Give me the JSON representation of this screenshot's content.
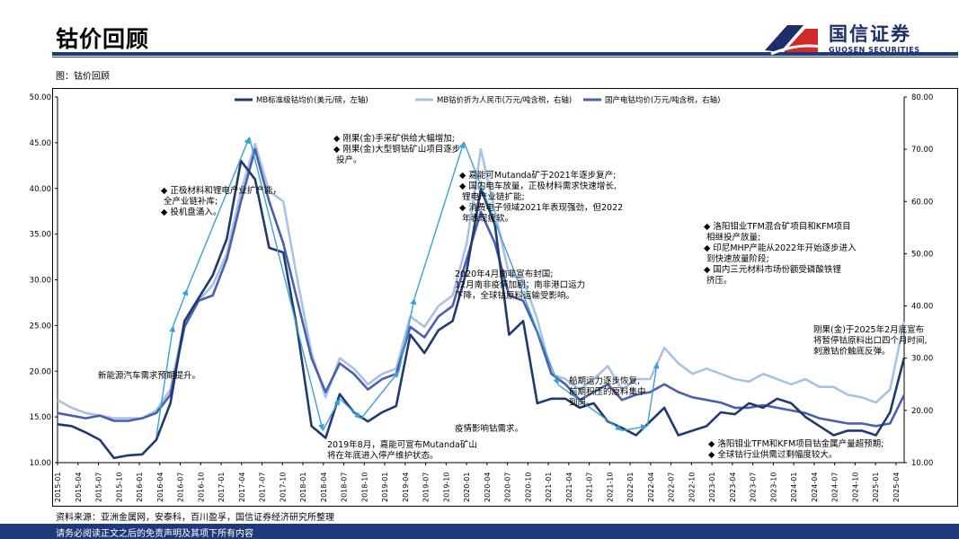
{
  "header": {
    "title": "钴价回顾"
  },
  "logo": {
    "name_cn": "国信证券",
    "name_en": "GUOSEN SECURITIES"
  },
  "figure": {
    "caption": "图：钴价回顾"
  },
  "source": "资料来源：亚洲金属网，安泰科，百川盈孚，国信证券经济研究所整理",
  "footer": "请务必阅读正文之后的免责声明及其项下所有内容",
  "colors": {
    "mb": "#1f3a6e",
    "rmb": "#a9c2e3",
    "domestic": "#4a5fae",
    "arrow": "#3aa0d8",
    "brand": "#1f3a7a"
  },
  "chart_data": {
    "type": "line",
    "title": "钴价回顾",
    "x_ticks": [
      "2015-01",
      "2015-04",
      "2015-07",
      "2015-10",
      "2016-01",
      "2016-04",
      "2016-07",
      "2016-10",
      "2017-01",
      "2017-04",
      "2017-07",
      "2017-10",
      "2018-01",
      "2018-04",
      "2018-07",
      "2018-10",
      "2019-01",
      "2019-04",
      "2019-07",
      "2019-10",
      "2020-01",
      "2020-04",
      "2020-07",
      "2020-10",
      "2021-01",
      "2021-04",
      "2021-07",
      "2021-10",
      "2022-01",
      "2022-04",
      "2022-07",
      "2022-10",
      "2023-01",
      "2023-04",
      "2023-07",
      "2023-10",
      "2024-01",
      "2024-04",
      "2024-07",
      "2024-10",
      "2025-01",
      "2025-04"
    ],
    "y_left": {
      "min": 10,
      "max": 50,
      "step": 5,
      "tick_labels": [
        "10.00",
        "15.00",
        "20.00",
        "25.00",
        "30.00",
        "35.00",
        "40.00",
        "45.00",
        "50.00"
      ]
    },
    "y_right": {
      "min": 10,
      "max": 80,
      "step": 10,
      "tick_labels": [
        "10.00",
        "20.00",
        "30.00",
        "40.00",
        "50.00",
        "60.00",
        "70.00",
        "80.00"
      ]
    },
    "series": [
      {
        "name": "MB标准级钴均价(美元/磅，左轴)",
        "axis": "left",
        "points": [
          [
            0,
            14.2
          ],
          [
            1,
            14.0
          ],
          [
            2,
            13.3
          ],
          [
            3,
            12.5
          ],
          [
            4,
            10.5
          ],
          [
            5,
            10.8
          ],
          [
            6,
            10.9
          ],
          [
            7,
            12.5
          ],
          [
            8,
            16.5
          ],
          [
            9,
            25.5
          ],
          [
            10,
            28.0
          ],
          [
            11,
            30.5
          ],
          [
            12,
            34.5
          ],
          [
            13,
            43.0
          ],
          [
            14,
            41.0
          ],
          [
            15,
            33.5
          ],
          [
            16,
            33.0
          ],
          [
            17,
            24.5
          ],
          [
            18,
            14.0
          ],
          [
            19,
            12.7
          ],
          [
            20,
            17.5
          ],
          [
            21,
            15.5
          ],
          [
            22,
            14.5
          ],
          [
            23,
            15.5
          ],
          [
            24,
            16.2
          ],
          [
            25,
            24.0
          ],
          [
            26,
            22.0
          ],
          [
            27,
            24.5
          ],
          [
            28,
            25.5
          ],
          [
            29,
            31.0
          ],
          [
            30,
            40.0
          ],
          [
            31,
            36.0
          ],
          [
            32,
            24.0
          ],
          [
            33,
            25.5
          ],
          [
            34,
            16.5
          ],
          [
            35,
            17.0
          ],
          [
            36,
            17.0
          ],
          [
            37,
            16.0
          ],
          [
            38,
            16.5
          ],
          [
            39,
            14.5
          ],
          [
            40,
            13.8
          ],
          [
            41,
            13.0
          ],
          [
            42,
            14.5
          ],
          [
            43,
            16.0
          ],
          [
            44,
            13.0
          ],
          [
            45,
            13.5
          ],
          [
            46,
            14.0
          ],
          [
            47,
            15.5
          ],
          [
            48,
            15.3
          ],
          [
            49,
            16.5
          ],
          [
            50,
            16.0
          ],
          [
            51,
            17.0
          ],
          [
            52,
            16.5
          ],
          [
            53,
            15.0
          ],
          [
            54,
            14.0
          ],
          [
            55,
            13.0
          ],
          [
            56,
            13.5
          ],
          [
            57,
            13.5
          ],
          [
            58,
            13.0
          ],
          [
            59,
            15.5
          ],
          [
            60,
            21.5
          ]
        ]
      },
      {
        "name": "MB钴价折为人民币(万元/吨含税，右轴)",
        "axis": "right",
        "points": [
          [
            0,
            22.0
          ],
          [
            1,
            20.5
          ],
          [
            2,
            19.5
          ],
          [
            3,
            19.0
          ],
          [
            4,
            18.5
          ],
          [
            5,
            18.5
          ],
          [
            6,
            18.5
          ],
          [
            7,
            20.0
          ],
          [
            8,
            24.0
          ],
          [
            9,
            37.0
          ],
          [
            10,
            41.0
          ],
          [
            11,
            44.0
          ],
          [
            12,
            50.0
          ],
          [
            13,
            62.0
          ],
          [
            14,
            71.0
          ],
          [
            15,
            62.0
          ],
          [
            16,
            60.0
          ],
          [
            17,
            45.0
          ],
          [
            18,
            31.0
          ],
          [
            19,
            22.5
          ],
          [
            20,
            30.0
          ],
          [
            21,
            28.0
          ],
          [
            22,
            25.0
          ],
          [
            23,
            27.0
          ],
          [
            24,
            28.0
          ],
          [
            25,
            38.0
          ],
          [
            26,
            36.0
          ],
          [
            27,
            40.0
          ],
          [
            28,
            42.0
          ],
          [
            29,
            52.0
          ],
          [
            30,
            70.0
          ],
          [
            31,
            58.0
          ],
          [
            32,
            46.0
          ],
          [
            33,
            45.0
          ],
          [
            34,
            37.5
          ],
          [
            35,
            27.0
          ],
          [
            36,
            26.0
          ],
          [
            37,
            24.0
          ],
          [
            38,
            26.0
          ],
          [
            39,
            28.5
          ],
          [
            40,
            24.0
          ],
          [
            41,
            26.0
          ],
          [
            42,
            26.0
          ],
          [
            43,
            32.0
          ],
          [
            44,
            29.0
          ],
          [
            45,
            27.0
          ],
          [
            46,
            28.0
          ],
          [
            47,
            27.0
          ],
          [
            48,
            26.0
          ],
          [
            49,
            25.5
          ],
          [
            50,
            27.0
          ],
          [
            51,
            26.0
          ],
          [
            52,
            25.0
          ],
          [
            53,
            26.0
          ],
          [
            54,
            24.5
          ],
          [
            55,
            24.5
          ],
          [
            56,
            23.0
          ],
          [
            57,
            22.5
          ],
          [
            58,
            21.5
          ],
          [
            59,
            24.0
          ],
          [
            60,
            37.0
          ]
        ]
      },
      {
        "name": "国产电钴均价(万元/吨含税，右轴)",
        "axis": "right",
        "points": [
          [
            0,
            19.5
          ],
          [
            1,
            19.0
          ],
          [
            2,
            18.5
          ],
          [
            3,
            19.0
          ],
          [
            4,
            18.0
          ],
          [
            5,
            18.0
          ],
          [
            6,
            18.5
          ],
          [
            7,
            19.5
          ],
          [
            8,
            23.0
          ],
          [
            9,
            36.0
          ],
          [
            10,
            41.0
          ],
          [
            11,
            42.0
          ],
          [
            12,
            49.0
          ],
          [
            13,
            60.0
          ],
          [
            14,
            70.0
          ],
          [
            15,
            60.0
          ],
          [
            16,
            52.0
          ],
          [
            17,
            41.0
          ],
          [
            18,
            30.0
          ],
          [
            19,
            23.5
          ],
          [
            20,
            29.0
          ],
          [
            21,
            27.0
          ],
          [
            22,
            24.0
          ],
          [
            23,
            26.0
          ],
          [
            24,
            27.0
          ],
          [
            25,
            36.0
          ],
          [
            26,
            34.0
          ],
          [
            27,
            38.0
          ],
          [
            28,
            40.0
          ],
          [
            29,
            49.0
          ],
          [
            30,
            58.0
          ],
          [
            31,
            52.0
          ],
          [
            32,
            42.0
          ],
          [
            33,
            41.0
          ],
          [
            34,
            35.0
          ],
          [
            35,
            27.0
          ],
          [
            36,
            25.0
          ],
          [
            37,
            22.0
          ],
          [
            38,
            23.5
          ],
          [
            39,
            25.0
          ],
          [
            40,
            22.0
          ],
          [
            41,
            23.0
          ],
          [
            42,
            23.5
          ],
          [
            43,
            25.0
          ],
          [
            44,
            23.5
          ],
          [
            45,
            22.5
          ],
          [
            46,
            22.0
          ],
          [
            47,
            21.5
          ],
          [
            48,
            20.5
          ],
          [
            49,
            20.5
          ],
          [
            50,
            21.0
          ],
          [
            51,
            20.5
          ],
          [
            52,
            20.0
          ],
          [
            53,
            19.5
          ],
          [
            54,
            18.5
          ],
          [
            55,
            18.0
          ],
          [
            56,
            17.5
          ],
          [
            57,
            17.5
          ],
          [
            58,
            17.0
          ],
          [
            59,
            17.5
          ],
          [
            60,
            23.0
          ]
        ]
      }
    ],
    "trend_arrow_points": [
      [
        7,
        12.8
      ],
      [
        8.2,
        25.0
      ],
      [
        9.2,
        29.0
      ],
      [
        13.6,
        45.6
      ],
      [
        18.8,
        13.5
      ],
      [
        20,
        17.0
      ],
      [
        21.5,
        14.8
      ],
      [
        24.2,
        20.0
      ],
      [
        25.3,
        28.0
      ],
      [
        28.8,
        45.1
      ],
      [
        35.5,
        18.5
      ],
      [
        40,
        13.5
      ],
      [
        41.8,
        14.0
      ],
      [
        42.5,
        21.0
      ]
    ],
    "annotations": [
      {
        "lines": [
          "新能源汽车需求预期提升。"
        ]
      },
      {
        "lines": [
          "◆ 正极材料和锂电产业扩产能，",
          "    全产业链补库;",
          "◆ 投机盘涌入。"
        ]
      },
      {
        "lines": [
          "◆ 刚果(金)手采矿供给大幅增加;",
          "◆ 刚果(金)大型铜钴矿山项目逐步",
          "    投产。"
        ]
      },
      {
        "lines": [
          "2019年8月，嘉能可宣布Mutanda矿山",
          "将在年底进入停产维护状态。"
        ]
      },
      {
        "lines": [
          "疫情影响钴需求。"
        ]
      },
      {
        "lines": [
          "2020年4月南非宣布封国;",
          "12月南非疫情加剧；南非港口运力",
          "下降，全球钴原料运输受影响。"
        ]
      },
      {
        "lines": [
          "◆ 嘉能可Mutanda矿于2021年逐步复产;",
          "◆ 国内电车放量，正极材料需求快速增长,",
          "    锂电产业链扩能;",
          "◆ 消费电子领域2021年表现强劲，但2022",
          "    年表现疲软。"
        ]
      },
      {
        "lines": [
          "船期运力逐步恢复,",
          "前期积压的原料集中",
          "到岗。"
        ]
      },
      {
        "lines": [
          "◆ 洛阳钼业TFM混合矿项目和KFM项目",
          "    相继投产放量;",
          "◆ 印尼MHP产能从2022年开始逐步进入",
          "    到快速放量阶段;",
          "◆ 国内三元材料市场份额受磷酸铁锂",
          "    挤压。"
        ]
      },
      {
        "lines": [
          "刚果(金)于2025年2月底宣布",
          "将暂停钴原料出口四个月时间,",
          "刺激钴价触底反弹。"
        ]
      },
      {
        "lines": [
          "◆ 洛阳钼业TFM和KFM项目钴金属产量超预期;",
          "◆ 全球钴行业供需过剩幅度较大。"
        ]
      }
    ]
  }
}
